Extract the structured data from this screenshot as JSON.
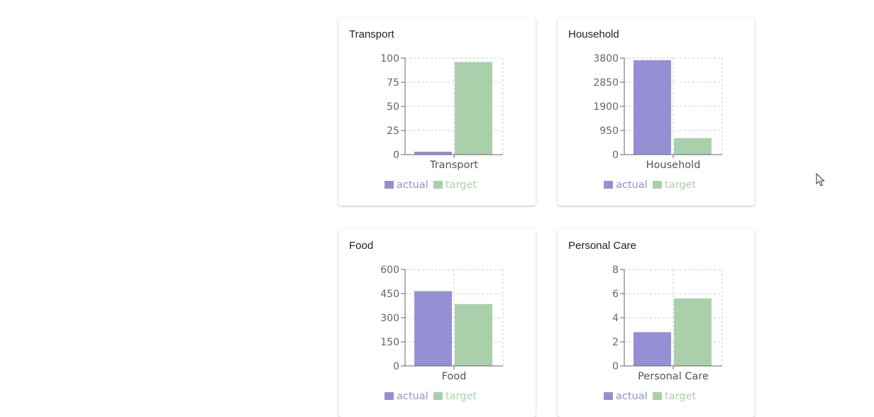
{
  "colors": {
    "actual": "#9590d4",
    "target": "#a9d0aa",
    "grid": "#cccccc",
    "axis": "#666666"
  },
  "legend": {
    "actual_label": "actual",
    "target_label": "target"
  },
  "chart_data": [
    {
      "type": "bar",
      "title": "Transport",
      "categories": [
        "Transport"
      ],
      "series": [
        {
          "name": "actual",
          "values": [
            3
          ]
        },
        {
          "name": "target",
          "values": [
            96
          ]
        }
      ],
      "yticks": [
        0,
        25,
        50,
        75,
        100
      ],
      "ylim": [
        0,
        100
      ],
      "grid": true,
      "legend_position": "bottom"
    },
    {
      "type": "bar",
      "title": "Household",
      "categories": [
        "Household"
      ],
      "series": [
        {
          "name": "actual",
          "values": [
            3720
          ]
        },
        {
          "name": "target",
          "values": [
            650
          ]
        }
      ],
      "yticks": [
        0,
        950,
        1900,
        2850,
        3800
      ],
      "ylim": [
        0,
        3800
      ],
      "grid": true,
      "legend_position": "bottom"
    },
    {
      "type": "bar",
      "title": "Food",
      "categories": [
        "Food"
      ],
      "series": [
        {
          "name": "actual",
          "values": [
            465
          ]
        },
        {
          "name": "target",
          "values": [
            385
          ]
        }
      ],
      "yticks": [
        0,
        150,
        300,
        450,
        600
      ],
      "ylim": [
        0,
        600
      ],
      "grid": true,
      "legend_position": "bottom"
    },
    {
      "type": "bar",
      "title": "Personal Care",
      "categories": [
        "Personal Care"
      ],
      "series": [
        {
          "name": "actual",
          "values": [
            2.8
          ]
        },
        {
          "name": "target",
          "values": [
            5.6
          ]
        }
      ],
      "yticks": [
        0,
        2,
        4,
        6,
        8
      ],
      "ylim": [
        0,
        8
      ],
      "grid": true,
      "legend_position": "bottom"
    }
  ]
}
